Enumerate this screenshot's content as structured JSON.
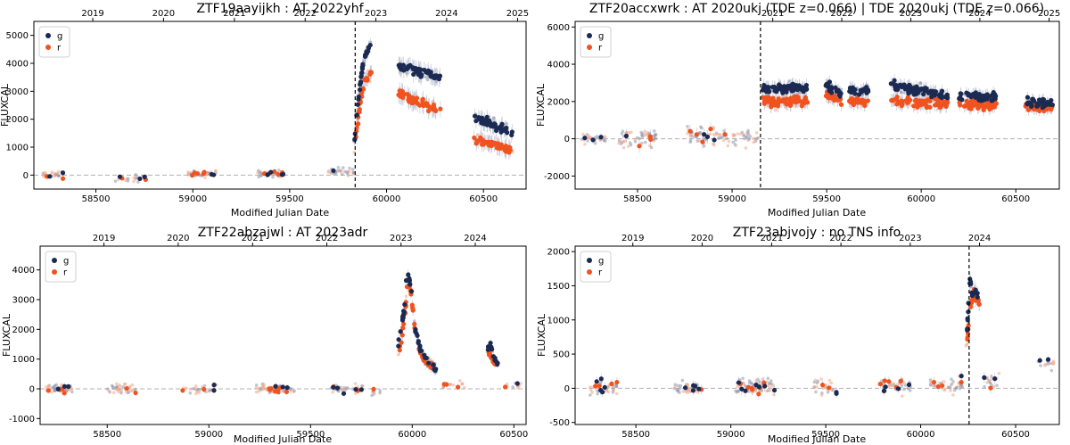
{
  "colors": {
    "g": "#1b2a52",
    "r": "#f0531e",
    "g_faint": "#8e97ae",
    "r_faint": "#f6a585",
    "errorbar": "#bfc6d6"
  },
  "chart_data": [
    {
      "type": "scatter",
      "title": "ZTF19aayijkh  :  AT 2022yhf",
      "xlabel": "Modified Julian Date",
      "ylabel": "FLUXCAL",
      "xlim": [
        58180,
        60720
      ],
      "ylim": [
        -500,
        5500
      ],
      "xticks": [
        58500,
        59000,
        59500,
        60000,
        60500
      ],
      "yticks": [
        0,
        1000,
        2000,
        3000,
        4000,
        5000
      ],
      "top_axis_years": [
        "2019",
        "2020",
        "2021",
        "2022",
        "2023",
        "2024",
        "2025"
      ],
      "top_axis_mjd": [
        58484,
        58849,
        59215,
        59580,
        59945,
        60310,
        60676
      ],
      "vline_mjd": 59838,
      "legend": [
        "g",
        "r"
      ],
      "segments": [
        {
          "type": "quiet",
          "x0": 58220,
          "x1": 58330,
          "level": 0,
          "spread": 200,
          "n": 30
        },
        {
          "type": "quiet",
          "x0": 58600,
          "x1": 58760,
          "level": -100,
          "spread": 200,
          "n": 25
        },
        {
          "type": "quiet",
          "x0": 58970,
          "x1": 59120,
          "level": 50,
          "spread": 200,
          "n": 40
        },
        {
          "type": "quiet",
          "x0": 59330,
          "x1": 59470,
          "level": 50,
          "spread": 220,
          "n": 40
        },
        {
          "type": "quiet",
          "x0": 59700,
          "x1": 59830,
          "level": 150,
          "spread": 220,
          "n": 30
        },
        {
          "type": "path",
          "g": [
            [
              59835,
              1200
            ],
            [
              59850,
              2500
            ],
            [
              59870,
              3600
            ],
            [
              59890,
              4300
            ],
            [
              59910,
              4600
            ],
            [
              59925,
              4800
            ]
          ],
          "r": [
            [
              59835,
              900
            ],
            [
              59850,
              1900
            ],
            [
              59870,
              2800
            ],
            [
              59890,
              3400
            ],
            [
              59910,
              3600
            ],
            [
              59925,
              3700
            ]
          ],
          "spread": 250,
          "n": 30,
          "err": 500
        },
        {
          "type": "block",
          "x0": 60060,
          "x1": 60280,
          "g": [
            3900,
            3500
          ],
          "r": [
            2900,
            2300
          ],
          "spread": 280,
          "n": 55,
          "err": 600
        },
        {
          "type": "block",
          "x0": 60450,
          "x1": 60650,
          "g": [
            2100,
            1500
          ],
          "r": [
            1300,
            900
          ],
          "spread": 240,
          "n": 50,
          "err": 550
        }
      ]
    },
    {
      "type": "scatter",
      "title": "ZTF20accxwrk  :  AT 2020ukj (TDE z=0.066) | TDE 2020ukj (TDE z=0.066)",
      "xlabel": "Modified Julian Date",
      "ylabel": "FLUXCAL",
      "xlim": [
        58170,
        60730
      ],
      "ylim": [
        -2700,
        6300
      ],
      "xticks": [
        58500,
        59000,
        59500,
        60000,
        60500
      ],
      "yticks": [
        -2000,
        0,
        2000,
        4000,
        6000
      ],
      "top_axis_years": [
        "2021",
        "2022",
        "2023",
        "2024",
        "2025"
      ],
      "top_axis_mjd": [
        59215,
        59580,
        59945,
        60310,
        60676
      ],
      "vline_mjd": 59150,
      "legend": [
        "g",
        "r"
      ],
      "segments": [
        {
          "type": "quiet",
          "x0": 58200,
          "x1": 58330,
          "level": 0,
          "spread": 500,
          "n": 30
        },
        {
          "type": "quiet",
          "x0": 58400,
          "x1": 58600,
          "level": 0,
          "spread": 900,
          "n": 55
        },
        {
          "type": "quiet",
          "x0": 58760,
          "x1": 59140,
          "level": 100,
          "spread": 900,
          "n": 90
        },
        {
          "type": "block",
          "x0": 59160,
          "x1": 59400,
          "g": [
            2700,
            2700
          ],
          "r": [
            2000,
            2000
          ],
          "spread": 420,
          "n": 70,
          "err": 700
        },
        {
          "type": "block",
          "x0": 59490,
          "x1": 59580,
          "g": [
            3000,
            2400
          ],
          "r": [
            2400,
            2000
          ],
          "spread": 400,
          "n": 25,
          "err": 700
        },
        {
          "type": "block",
          "x0": 59620,
          "x1": 59720,
          "g": [
            2600,
            2600
          ],
          "r": [
            2000,
            2000
          ],
          "spread": 400,
          "n": 25,
          "err": 700
        },
        {
          "type": "block",
          "x0": 59840,
          "x1": 60140,
          "g": [
            2900,
            2300
          ],
          "r": [
            2000,
            1900
          ],
          "spread": 420,
          "n": 75,
          "err": 700
        },
        {
          "type": "block",
          "x0": 60200,
          "x1": 60400,
          "g": [
            2300,
            2200
          ],
          "r": [
            1800,
            1800
          ],
          "spread": 400,
          "n": 50,
          "err": 650
        },
        {
          "type": "block",
          "x0": 60550,
          "x1": 60700,
          "g": [
            2000,
            1900
          ],
          "r": [
            1700,
            1700
          ],
          "spread": 380,
          "n": 35,
          "err": 600
        }
      ]
    },
    {
      "type": "scatter",
      "title": "ZTF22abzajwl  :  AT 2023adr",
      "xlabel": "Modified Julian Date",
      "ylabel": "FLUXCAL",
      "xlim": [
        58170,
        60560
      ],
      "ylim": [
        -1200,
        4800
      ],
      "xticks": [
        58500,
        59000,
        59500,
        60000,
        60500
      ],
      "yticks": [
        -1000,
        0,
        1000,
        2000,
        3000,
        4000
      ],
      "top_axis_years": [
        "2019",
        "2020",
        "2021",
        "2022",
        "2023",
        "2024"
      ],
      "top_axis_mjd": [
        58484,
        58849,
        59215,
        59580,
        59945,
        60310
      ],
      "vline_mjd": null,
      "legend": [
        "g",
        "r"
      ],
      "segments": [
        {
          "type": "quiet",
          "x0": 58200,
          "x1": 58330,
          "level": 0,
          "spread": 280,
          "n": 55
        },
        {
          "type": "quiet",
          "x0": 58500,
          "x1": 58640,
          "level": 0,
          "spread": 260,
          "n": 40
        },
        {
          "type": "quiet",
          "x0": 58870,
          "x1": 59040,
          "level": 0,
          "spread": 250,
          "n": 30
        },
        {
          "type": "quiet",
          "x0": 59230,
          "x1": 59420,
          "level": 0,
          "spread": 260,
          "n": 60
        },
        {
          "type": "quiet",
          "x0": 59600,
          "x1": 59760,
          "level": 0,
          "spread": 260,
          "n": 40
        },
        {
          "type": "quiet",
          "x0": 59800,
          "x1": 59850,
          "level": -100,
          "spread": 250,
          "n": 8
        },
        {
          "type": "path",
          "g": [
            [
              59930,
              1500
            ],
            [
              59960,
              2600
            ],
            [
              59975,
              4100
            ],
            [
              59995,
              3300
            ],
            [
              60015,
              2000
            ],
            [
              60040,
              1300
            ],
            [
              60070,
              1000
            ],
            [
              60100,
              750
            ],
            [
              60125,
              600
            ]
          ],
          "r": [
            [
              59935,
              1200
            ],
            [
              59965,
              2400
            ],
            [
              59980,
              3900
            ],
            [
              60000,
              2800
            ],
            [
              60020,
              1700
            ],
            [
              60045,
              1100
            ],
            [
              60075,
              900
            ],
            [
              60105,
              700
            ]
          ],
          "spread": 180,
          "n": 40,
          "err": 350
        },
        {
          "type": "quiet",
          "x0": 60150,
          "x1": 60260,
          "level": 120,
          "spread": 250,
          "n": 15
        },
        {
          "type": "path",
          "g": [
            [
              60370,
              1300
            ],
            [
              60385,
              1500
            ],
            [
              60400,
              1100
            ],
            [
              60420,
              800
            ]
          ],
          "r": [
            [
              60375,
              1200
            ],
            [
              60395,
              1000
            ],
            [
              60415,
              800
            ]
          ],
          "spread": 150,
          "n": 14,
          "err": 250
        },
        {
          "type": "quiet",
          "x0": 60440,
          "x1": 60540,
          "level": 100,
          "spread": 200,
          "n": 12
        }
      ]
    },
    {
      "type": "scatter",
      "title": "ZTF23abjvojy  :  no TNS info",
      "xlabel": "Modified Julian Date",
      "ylabel": "FLUXCAL",
      "xlim": [
        58180,
        60730
      ],
      "ylim": [
        -530,
        2080
      ],
      "xticks": [
        58500,
        59000,
        59500,
        60000,
        60500
      ],
      "yticks": [
        -500,
        0,
        500,
        1000,
        1500,
        2000
      ],
      "top_axis_years": [
        "2019",
        "2020",
        "2021",
        "2022",
        "2023",
        "2024"
      ],
      "top_axis_mjd": [
        58484,
        58849,
        59215,
        59580,
        59945,
        60310
      ],
      "vline_mjd": 60255,
      "legend": [
        "g",
        "r"
      ],
      "segments": [
        {
          "type": "quiet",
          "x0": 58250,
          "x1": 58400,
          "level": 0,
          "spread": 180,
          "n": 40
        },
        {
          "type": "quiet",
          "x0": 58700,
          "x1": 58850,
          "level": 0,
          "spread": 180,
          "n": 45
        },
        {
          "type": "quiet",
          "x0": 59020,
          "x1": 59230,
          "level": 30,
          "spread": 220,
          "n": 80
        },
        {
          "type": "quiet",
          "x0": 59430,
          "x1": 59560,
          "level": 20,
          "spread": 170,
          "n": 30
        },
        {
          "type": "quiet",
          "x0": 59780,
          "x1": 59950,
          "level": 30,
          "spread": 170,
          "n": 45
        },
        {
          "type": "quiet",
          "x0": 60050,
          "x1": 60220,
          "level": 40,
          "spread": 190,
          "n": 40
        },
        {
          "type": "path",
          "g": [
            [
              60240,
              650
            ],
            [
              60260,
              1600
            ],
            [
              60275,
              1300
            ],
            [
              60290,
              1450
            ],
            [
              60305,
              1300
            ]
          ],
          "r": [
            [
              60245,
              700
            ],
            [
              60262,
              1200
            ],
            [
              60280,
              1400
            ],
            [
              60295,
              1300
            ],
            [
              60310,
              1250
            ]
          ],
          "spread": 100,
          "n": 22,
          "err": 200
        },
        {
          "type": "quiet",
          "x0": 60320,
          "x1": 60420,
          "level": 100,
          "spread": 200,
          "n": 18
        },
        {
          "type": "quiet",
          "x0": 60600,
          "x1": 60700,
          "level": 350,
          "spread": 120,
          "n": 15
        }
      ]
    }
  ]
}
